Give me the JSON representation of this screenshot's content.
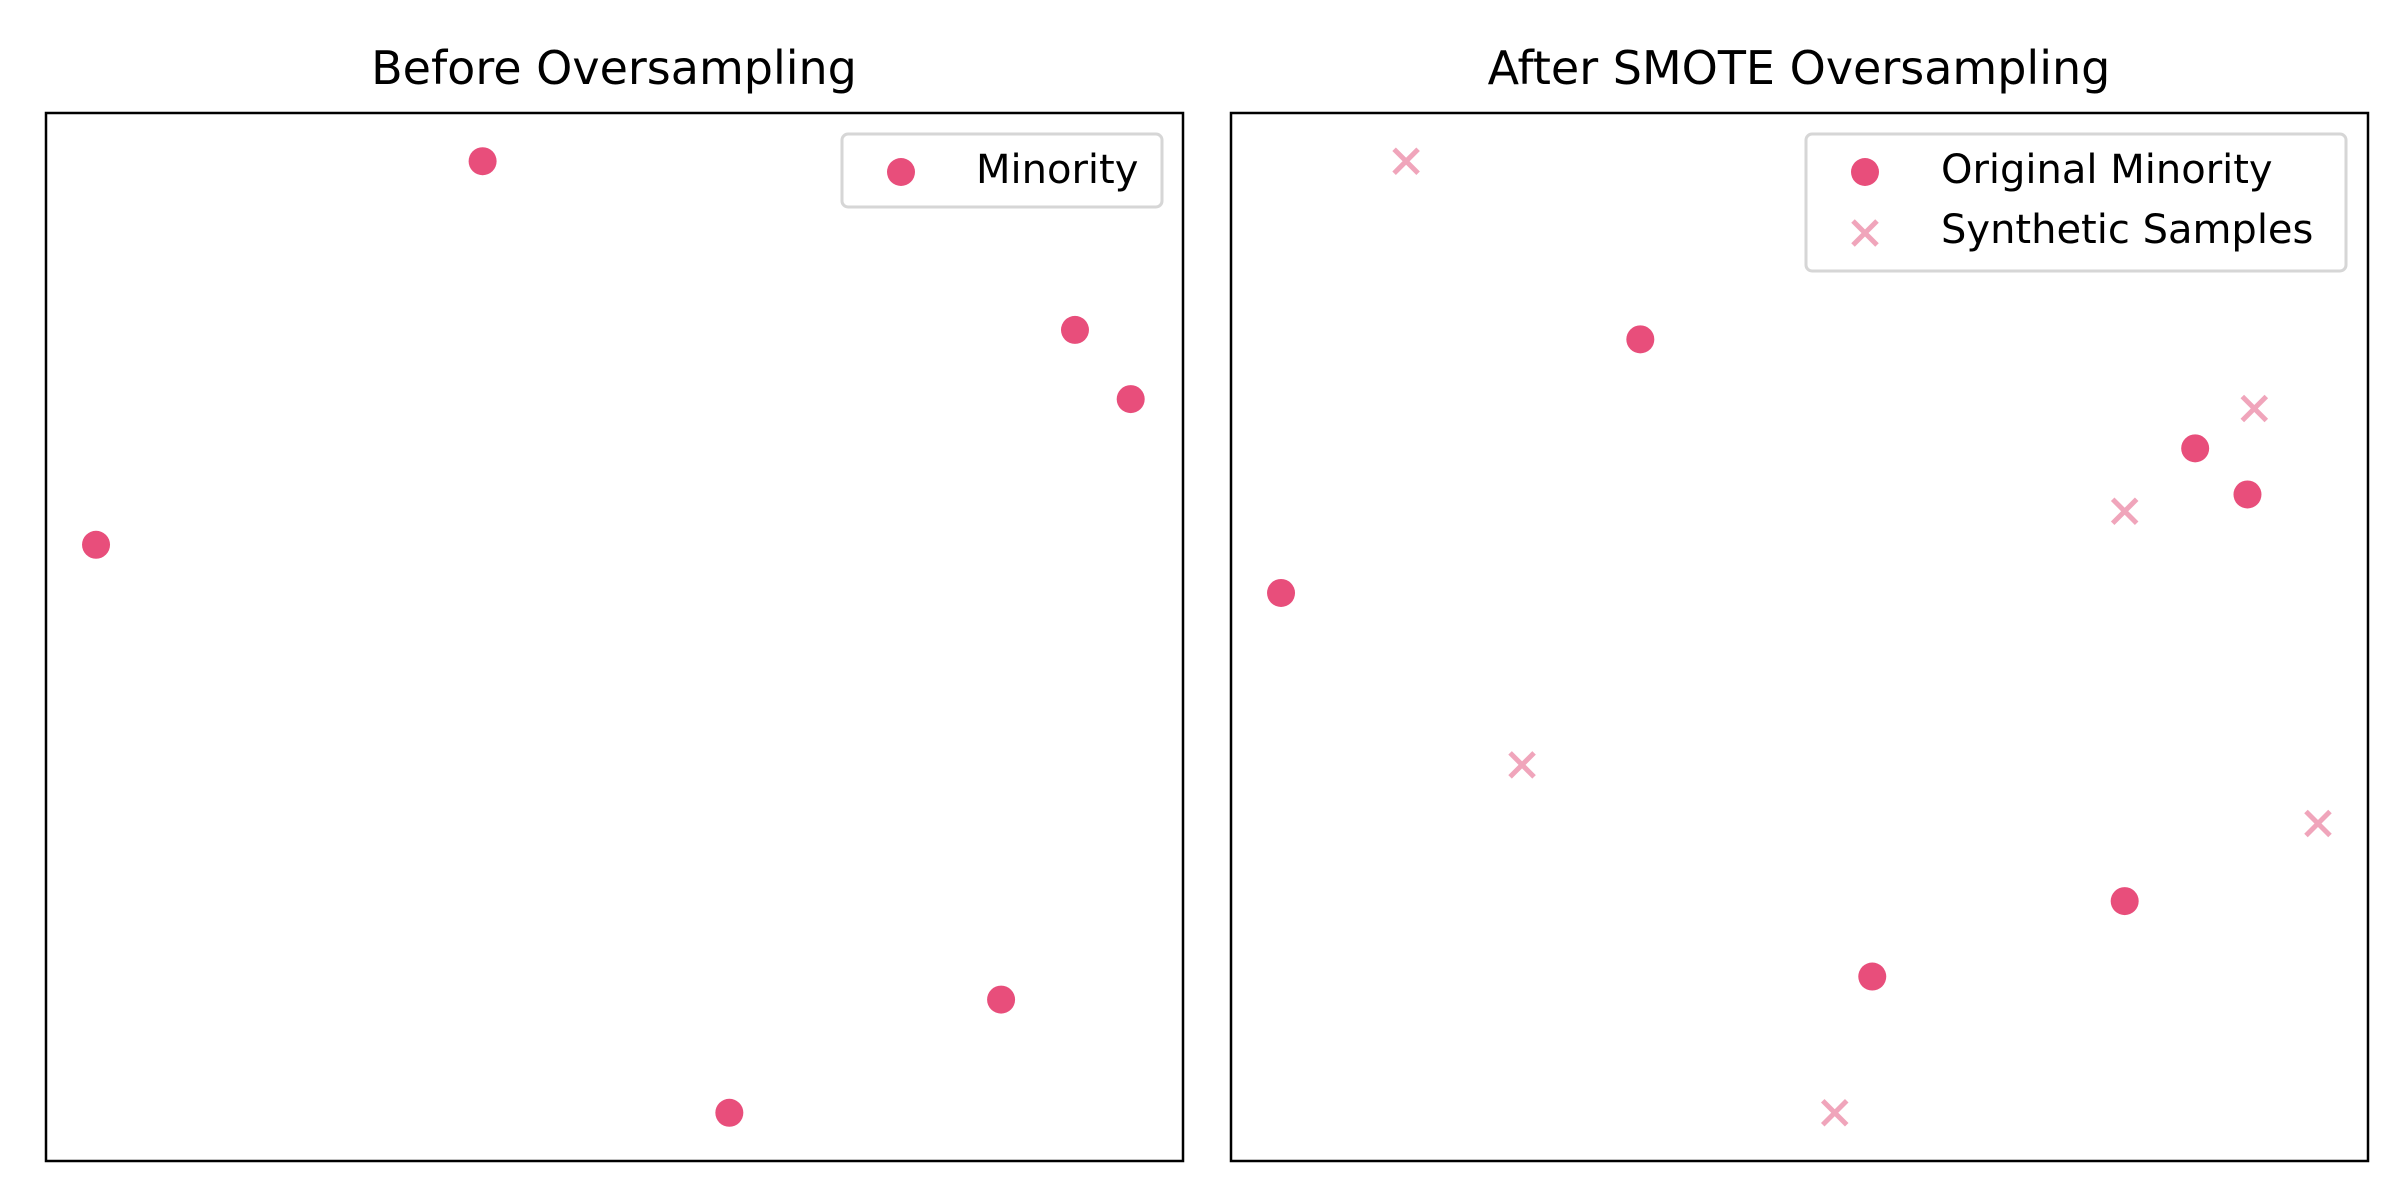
{
  "colors": {
    "original": "#E84E7B",
    "synthetic": "#F0A5BB",
    "frame": "#000000",
    "legend_border": "#D6D6D6"
  },
  "chart_data": [
    {
      "type": "scatter",
      "title": "Before Oversampling",
      "xlabel": "",
      "ylabel": "",
      "xlim": [
        0,
        100
      ],
      "ylim": [
        0,
        100
      ],
      "grid": false,
      "ticks_visible": false,
      "legend_position": "top-right",
      "series": [
        {
          "name": "Minority",
          "marker": "circle",
          "color": "#E84E7B",
          "points": [
            {
              "x": 38.4,
              "y": 95.4
            },
            {
              "x": 90.5,
              "y": 79.3
            },
            {
              "x": 95.4,
              "y": 72.7
            },
            {
              "x": 4.4,
              "y": 58.8
            },
            {
              "x": 84.0,
              "y": 15.4
            },
            {
              "x": 60.1,
              "y": 4.6
            }
          ]
        }
      ]
    },
    {
      "type": "scatter",
      "title": "After SMOTE Oversampling",
      "xlabel": "",
      "ylabel": "",
      "xlim": [
        0,
        100
      ],
      "ylim": [
        0,
        100
      ],
      "grid": false,
      "ticks_visible": false,
      "legend_position": "top-right",
      "series": [
        {
          "name": "Original Minority",
          "marker": "circle",
          "color": "#E84E7B",
          "points": [
            {
              "x": 36.0,
              "y": 78.4
            },
            {
              "x": 84.8,
              "y": 68.0
            },
            {
              "x": 89.4,
              "y": 63.6
            },
            {
              "x": 4.4,
              "y": 54.2
            },
            {
              "x": 78.6,
              "y": 24.8
            },
            {
              "x": 56.4,
              "y": 17.6
            }
          ]
        },
        {
          "name": "Synthetic Samples",
          "marker": "x",
          "color": "#F0A5BB",
          "points": [
            {
              "x": 15.4,
              "y": 95.4
            },
            {
              "x": 90.0,
              "y": 71.8
            },
            {
              "x": 78.6,
              "y": 62.0
            },
            {
              "x": 25.6,
              "y": 37.8
            },
            {
              "x": 95.6,
              "y": 32.2
            },
            {
              "x": 53.1,
              "y": 4.6
            }
          ]
        }
      ]
    }
  ]
}
